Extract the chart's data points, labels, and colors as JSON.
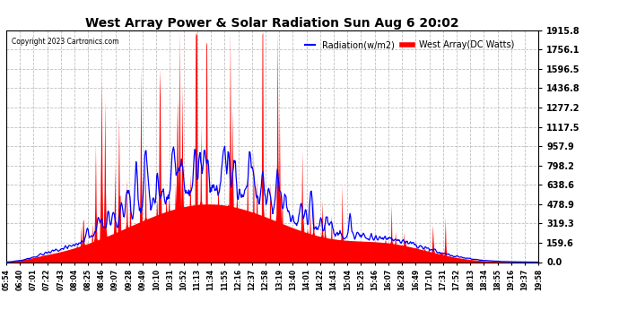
{
  "title": "West Array Power & Solar Radiation Sun Aug 6 20:02",
  "copyright": "Copyright 2023 Cartronics.com",
  "legend_radiation": "Radiation(w/m2)",
  "legend_west": "West Array(DC Watts)",
  "legend_radiation_color": "blue",
  "legend_west_color": "red",
  "y_ticks": [
    0.0,
    159.6,
    319.3,
    478.9,
    638.6,
    798.2,
    957.9,
    1117.5,
    1277.2,
    1436.8,
    1596.5,
    1756.1,
    1915.8
  ],
  "y_max": 1915.8,
  "y_min": 0.0,
  "background_color": "#ffffff",
  "grid_color": "#b0b0b0",
  "fill_color_red": "#ff0000",
  "line_color_blue": "#0000ff",
  "x_labels": [
    "05:54",
    "06:40",
    "07:01",
    "07:22",
    "07:43",
    "08:04",
    "08:25",
    "08:46",
    "09:07",
    "09:28",
    "09:49",
    "10:10",
    "10:31",
    "10:52",
    "11:13",
    "11:34",
    "11:55",
    "12:16",
    "12:37",
    "12:58",
    "13:19",
    "13:40",
    "14:01",
    "14:22",
    "14:43",
    "15:04",
    "15:25",
    "15:46",
    "16:07",
    "16:28",
    "16:49",
    "17:10",
    "17:31",
    "17:52",
    "18:13",
    "18:34",
    "18:55",
    "19:16",
    "19:37",
    "19:58"
  ]
}
